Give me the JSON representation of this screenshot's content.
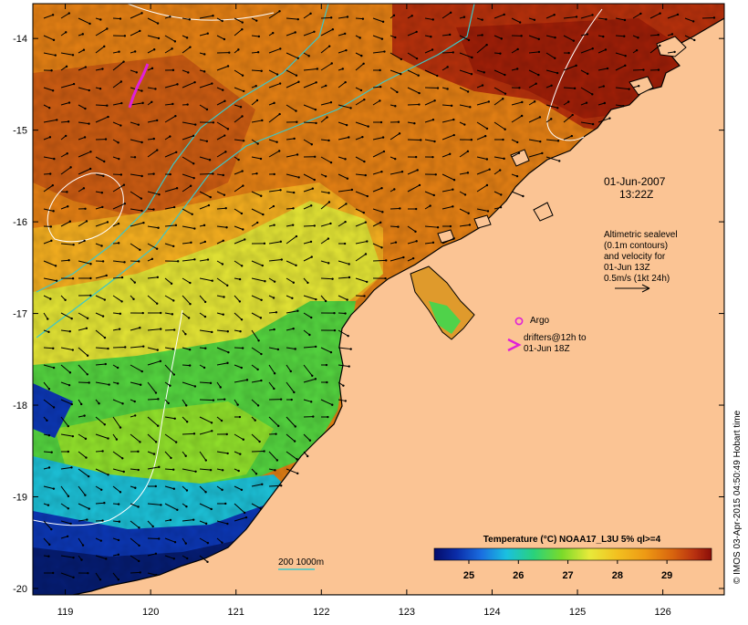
{
  "map": {
    "date": "01-Jun-2007",
    "time": "13:22Z",
    "lon_ticks": [
      "119",
      "120",
      "121",
      "122",
      "123",
      "124",
      "125",
      "126"
    ],
    "lat_ticks": [
      "-14",
      "-15",
      "-16",
      "-17",
      "-18",
      "-19",
      "-20"
    ],
    "lon_range": [
      118.62,
      126.72
    ],
    "lat_range": [
      -20.07,
      -13.62
    ]
  },
  "legend_text": {
    "altimetric_lines": [
      "Altimetric sealevel",
      "(0.1m contours)",
      "and velocity for",
      "01-Jun 13Z",
      "0.5m/s (1kt 24h)"
    ],
    "argo_label": "Argo",
    "drifters_lines": [
      "drifters@12h to",
      "01-Jun 18Z"
    ],
    "depth_label": "200  1000m"
  },
  "colorbar": {
    "title": "Temperature (°C) NOAA17_L3U 5% ql>=4",
    "min": 24.3,
    "max": 29.9,
    "ticks": [
      "25",
      "26",
      "27",
      "28",
      "29"
    ]
  },
  "credit": "© IMOS 03-Apr-2015 04:50:49 Hobart time",
  "colors": {
    "land": "#fbc494",
    "warm_deep": "#a11a08",
    "warm": "#d9680e",
    "mid": "#efa21b",
    "yellow": "#e6e83a",
    "green": "#39d14a",
    "cyan": "#19b7d6",
    "blue": "#0930a8",
    "navy": "#061a6e",
    "drifter": "#e020d8",
    "depth_contour": "#3cc8c8"
  }
}
